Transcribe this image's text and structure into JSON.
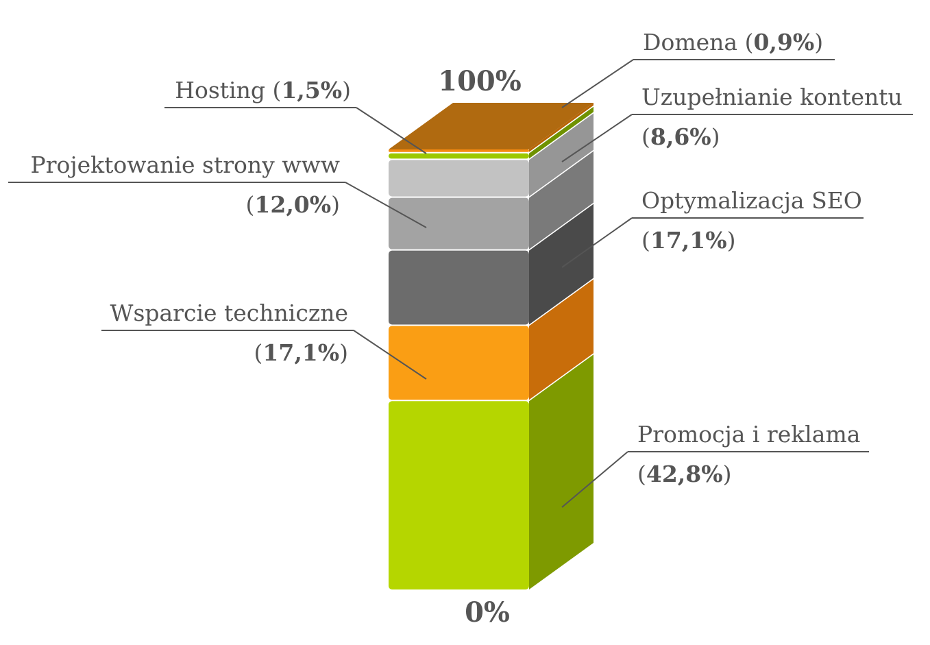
{
  "chart_data": {
    "type": "bar",
    "subtype": "stacked-3d",
    "top_label": "100%",
    "bottom_label": "0%",
    "series": [
      {
        "name": "Promocja i reklama",
        "value": 42.8,
        "value_label": "42,8%",
        "color": "#b5d600",
        "side": "#7e9a00",
        "top": "#c9e41a"
      },
      {
        "name": "Wsparcie techniczne",
        "value": 17.1,
        "value_label": "17,1%",
        "color": "#fa9e14",
        "side": "#c86d0a",
        "top": "#ffb13c"
      },
      {
        "name": "Optymalizacja SEO",
        "value": 17.1,
        "value_label": "17,1%",
        "color": "#6c6c6c",
        "side": "#4a4a4a",
        "top": "#7d7d7d"
      },
      {
        "name": "Projektowanie strony www",
        "value": 12.0,
        "value_label": "12,0%",
        "color": "#a3a3a3",
        "side": "#7a7a7a",
        "top": "#b3b3b3"
      },
      {
        "name": "Uzupełnianie kontentu",
        "value": 8.6,
        "value_label": "8,6%",
        "color": "#c2c2c2",
        "side": "#969696",
        "top": "#d0d0d0"
      },
      {
        "name": "Hosting",
        "value": 1.5,
        "value_label": "1,5%",
        "color": "#9cc800",
        "side": "#6f9200",
        "top": "#b0d81a"
      },
      {
        "name": "Domena",
        "value": 0.9,
        "value_label": "0,9%",
        "color": "#f58a10",
        "side": "#b86405",
        "top": "#b06a10"
      }
    ]
  }
}
